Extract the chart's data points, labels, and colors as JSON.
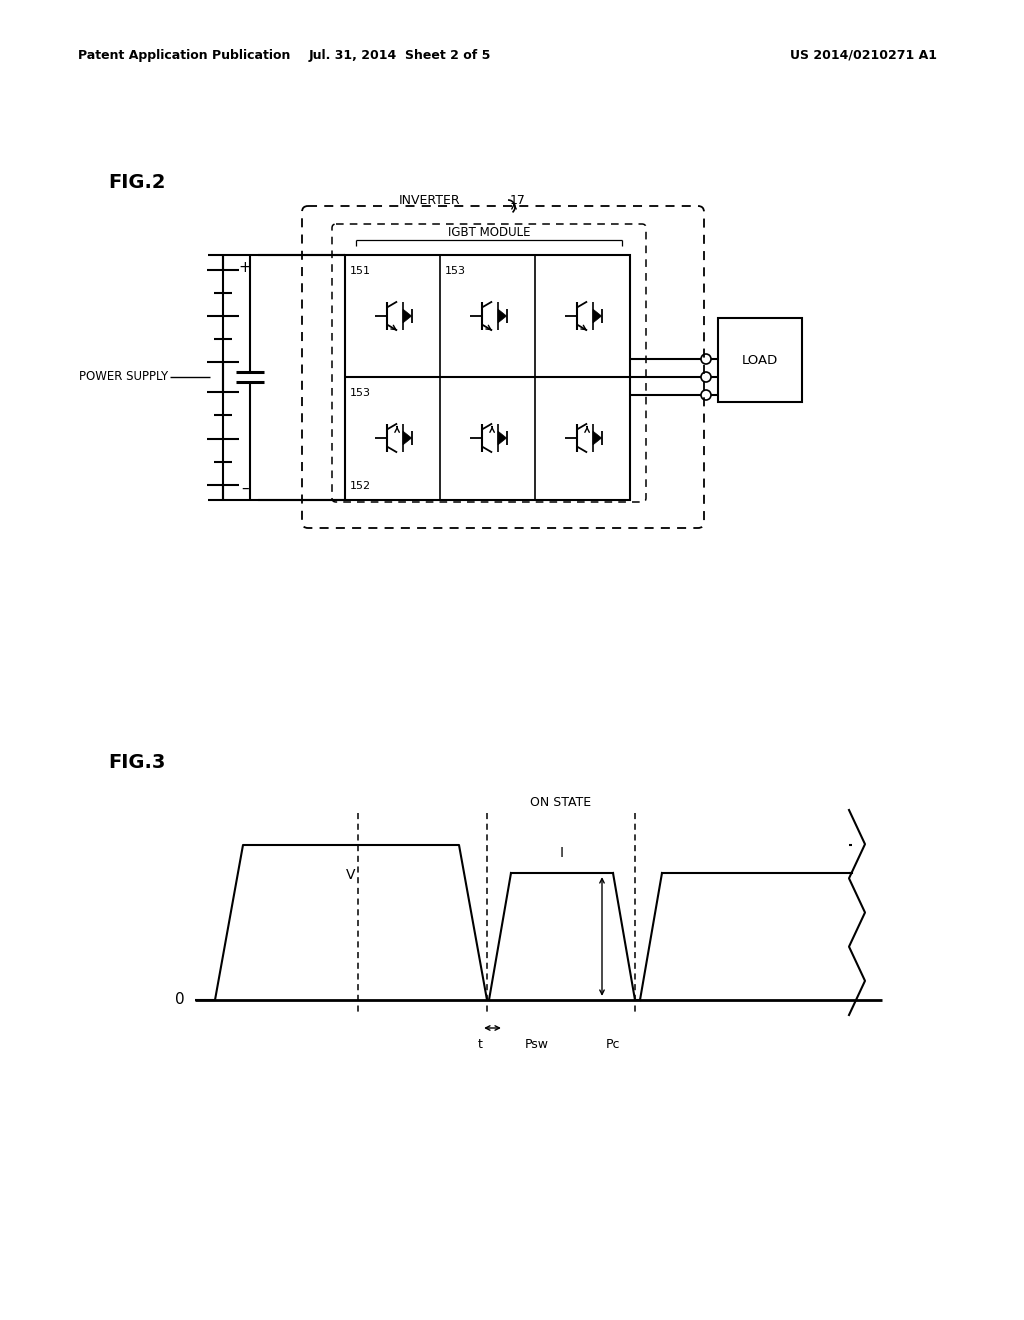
{
  "bg_color": "#ffffff",
  "text_color": "#000000",
  "header_left": "Patent Application Publication",
  "header_mid": "Jul. 31, 2014  Sheet 2 of 5",
  "header_right": "US 2014/0210271 A1",
  "fig2_label": "FIG.2",
  "fig3_label": "FIG.3",
  "inverter_label": "INVERTER",
  "igbt_label": "IGBT MODULE",
  "inverter_ref": "17",
  "power_supply_label": "POWER SUPPLY",
  "load_label": "LOAD",
  "label_151": "151",
  "label_152": "152",
  "label_153a": "153",
  "label_153b": "153",
  "on_state_label": "ON STATE",
  "label_V": "V",
  "label_I": "I",
  "label_0": "0",
  "label_t": "t",
  "label_Psw": "Psw",
  "label_Pc": "Pc"
}
